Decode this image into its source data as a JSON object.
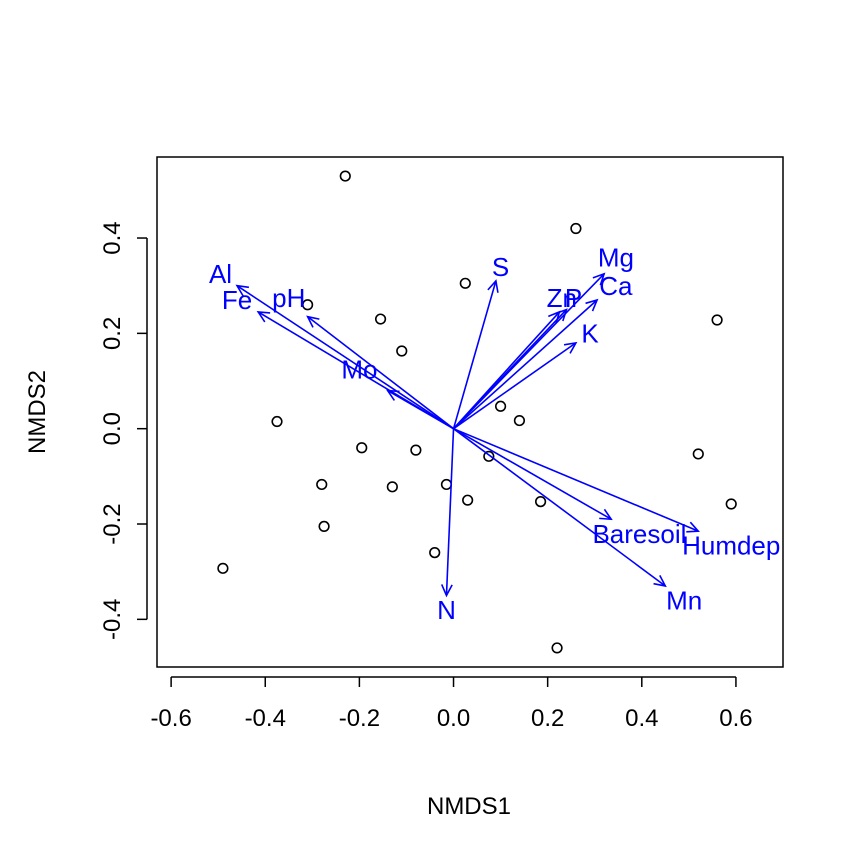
{
  "chart_data": {
    "type": "scatter",
    "title": "",
    "xlabel": "NMDS1",
    "ylabel": "NMDS2",
    "xlim": [
      -0.63,
      0.7
    ],
    "ylim": [
      -0.5,
      0.57
    ],
    "x_ticks": [
      -0.6,
      -0.4,
      -0.2,
      0.0,
      0.2,
      0.4,
      0.6
    ],
    "x_tick_labels": [
      "-0.6",
      "-0.4",
      "-0.2",
      "0.0",
      "0.2",
      "0.4",
      "0.6"
    ],
    "y_ticks": [
      -0.4,
      -0.2,
      0.0,
      0.2,
      0.4
    ],
    "y_tick_labels": [
      "-0.4",
      "-0.2",
      "0.0",
      "0.2",
      "0.4"
    ],
    "grid": false,
    "colors": {
      "points": "#000000",
      "vectors": "#0000ff",
      "frame": "#000000"
    },
    "points": [
      {
        "x": -0.23,
        "y": 0.53
      },
      {
        "x": 0.26,
        "y": 0.42
      },
      {
        "x": 0.025,
        "y": 0.305
      },
      {
        "x": -0.31,
        "y": 0.26
      },
      {
        "x": -0.155,
        "y": 0.23
      },
      {
        "x": 0.56,
        "y": 0.228
      },
      {
        "x": -0.11,
        "y": 0.163
      },
      {
        "x": 0.1,
        "y": 0.047
      },
      {
        "x": 0.14,
        "y": 0.017
      },
      {
        "x": -0.375,
        "y": 0.015
      },
      {
        "x": -0.195,
        "y": -0.04
      },
      {
        "x": -0.08,
        "y": -0.045
      },
      {
        "x": 0.075,
        "y": -0.058
      },
      {
        "x": 0.52,
        "y": -0.053
      },
      {
        "x": -0.28,
        "y": -0.117
      },
      {
        "x": -0.13,
        "y": -0.122
      },
      {
        "x": -0.015,
        "y": -0.117
      },
      {
        "x": 0.03,
        "y": -0.15
      },
      {
        "x": 0.185,
        "y": -0.153
      },
      {
        "x": 0.59,
        "y": -0.158
      },
      {
        "x": -0.275,
        "y": -0.205
      },
      {
        "x": -0.04,
        "y": -0.26
      },
      {
        "x": -0.49,
        "y": -0.293
      },
      {
        "x": 0.22,
        "y": -0.46
      }
    ],
    "vectors": [
      {
        "label": "Al",
        "x": -0.46,
        "y": 0.3,
        "label_x": -0.495,
        "label_y": 0.32
      },
      {
        "label": "Fe",
        "x": -0.415,
        "y": 0.245,
        "label_x": -0.46,
        "label_y": 0.265
      },
      {
        "label": "pH",
        "x": -0.31,
        "y": 0.235,
        "label_x": -0.35,
        "label_y": 0.27
      },
      {
        "label": "Mo",
        "x": -0.14,
        "y": 0.08,
        "label_x": -0.2,
        "label_y": 0.12
      },
      {
        "label": "S",
        "x": 0.09,
        "y": 0.31,
        "label_x": 0.1,
        "label_y": 0.335
      },
      {
        "label": "Zn",
        "x": 0.225,
        "y": 0.245,
        "label_x": 0.23,
        "label_y": 0.27
      },
      {
        "label": "P",
        "x": 0.24,
        "y": 0.25,
        "label_x": 0.255,
        "label_y": 0.27
      },
      {
        "label": "Mg",
        "x": 0.32,
        "y": 0.325,
        "label_x": 0.345,
        "label_y": 0.355
      },
      {
        "label": "Ca",
        "x": 0.305,
        "y": 0.27,
        "label_x": 0.345,
        "label_y": 0.295
      },
      {
        "label": "K",
        "x": 0.26,
        "y": 0.18,
        "label_x": 0.29,
        "label_y": 0.195
      },
      {
        "label": "Baresoil",
        "x": 0.335,
        "y": -0.19,
        "label_x": 0.395,
        "label_y": -0.225
      },
      {
        "label": "Humdep",
        "x": 0.52,
        "y": -0.215,
        "label_x": 0.59,
        "label_y": -0.25
      },
      {
        "label": "Mn",
        "x": 0.45,
        "y": -0.33,
        "label_x": 0.49,
        "label_y": -0.365
      },
      {
        "label": "N",
        "x": -0.015,
        "y": -0.35,
        "label_x": -0.015,
        "label_y": -0.385
      }
    ]
  }
}
